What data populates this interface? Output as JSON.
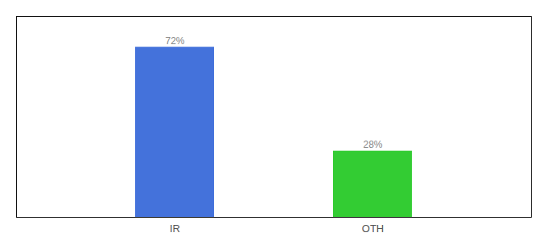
{
  "chart_data": {
    "type": "bar",
    "categories": [
      "IR",
      "OTH"
    ],
    "values": [
      72,
      28
    ],
    "value_labels": [
      "72%",
      "28%"
    ],
    "colors": [
      "#4472db",
      "#33cc33"
    ],
    "ylim": [
      0,
      85
    ],
    "grid": false,
    "data_labels": true,
    "tick_labels": "x"
  }
}
